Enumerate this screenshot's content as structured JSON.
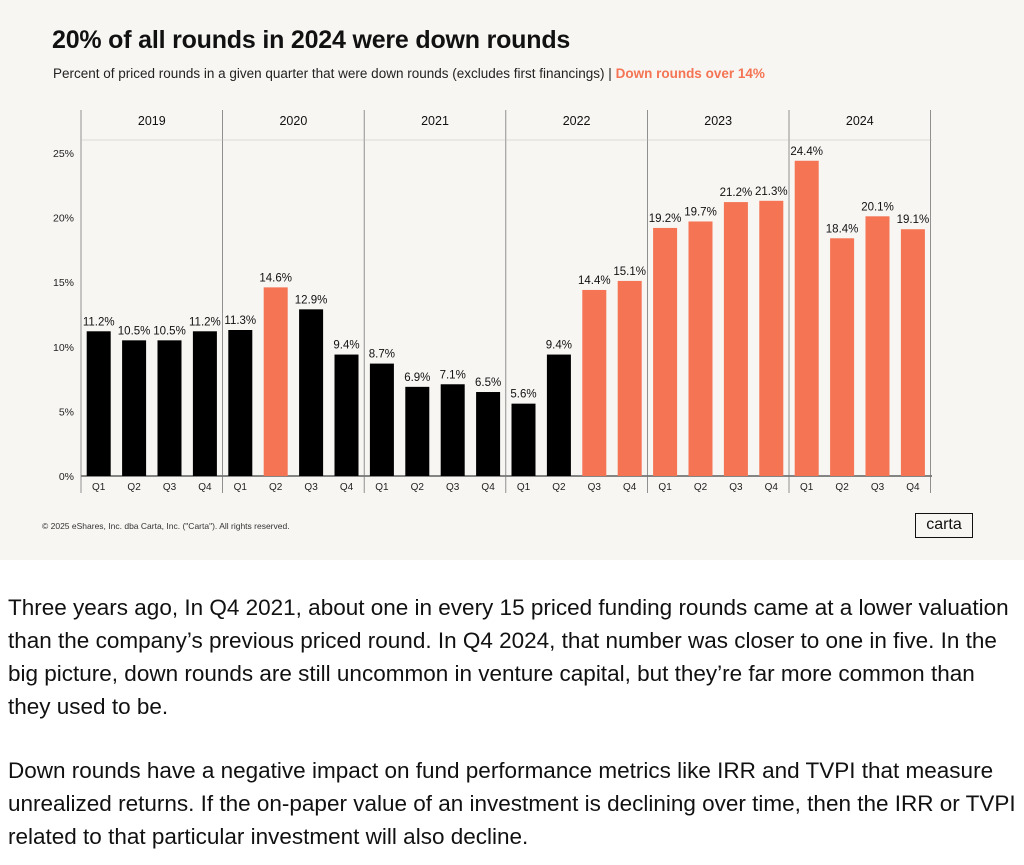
{
  "chart_data": {
    "type": "bar",
    "title": "20% of all rounds in 2024 were down rounds",
    "subtitle": "Percent of priced rounds in a given quarter that were down rounds (excludes first financings) |",
    "subtitle_highlight": "Down rounds over 14%",
    "years": [
      "2019",
      "2020",
      "2021",
      "2022",
      "2023",
      "2024"
    ],
    "categories": [
      "Q1",
      "Q2",
      "Q3",
      "Q4",
      "Q1",
      "Q2",
      "Q3",
      "Q4",
      "Q1",
      "Q2",
      "Q3",
      "Q4",
      "Q1",
      "Q2",
      "Q3",
      "Q4",
      "Q1",
      "Q2",
      "Q3",
      "Q4",
      "Q1",
      "Q2",
      "Q3",
      "Q4"
    ],
    "values": [
      11.2,
      10.5,
      10.5,
      11.2,
      11.3,
      14.6,
      12.9,
      9.4,
      8.7,
      6.9,
      7.1,
      6.5,
      5.6,
      9.4,
      14.4,
      15.1,
      19.2,
      19.7,
      21.2,
      21.3,
      24.4,
      18.4,
      20.1,
      19.1
    ],
    "labels": [
      "11.2%",
      "10.5%",
      "10.5%",
      "11.2%",
      "11.3%",
      "14.6%",
      "12.9%",
      "9.4%",
      "8.7%",
      "6.9%",
      "7.1%",
      "6.5%",
      "5.6%",
      "9.4%",
      "14.4%",
      "15.1%",
      "19.2%",
      "19.7%",
      "21.2%",
      "21.3%",
      "24.4%",
      "18.4%",
      "20.1%",
      "19.1%"
    ],
    "yticks": [
      "0%",
      "5%",
      "10%",
      "15%",
      "20%",
      "25%"
    ],
    "ylim": [
      0,
      25
    ],
    "highlight_threshold": 14,
    "colors": {
      "default": "#000000",
      "highlight": "#f47453"
    },
    "grid": false
  },
  "footer": {
    "copyright": "© 2025 eShares, Inc. dba Carta, Inc. (\"Carta\"). All rights reserved.",
    "logo_text": "carta"
  },
  "article": {
    "paragraph1": "Three years ago, In Q4 2021, about one in every 15 priced funding rounds came at a lower valuation than the company’s previous priced round. In Q4 2024, that number was closer to one in five. In the big picture, down rounds are still uncommon in venture capital, but they’re far more common than they used to be.",
    "paragraph2": "Down rounds have a negative impact on fund performance metrics like IRR and TVPI that measure unrealized returns. If the on-paper value of an investment is declining over time, then the IRR or TVPI related to that particular investment will also decline."
  }
}
